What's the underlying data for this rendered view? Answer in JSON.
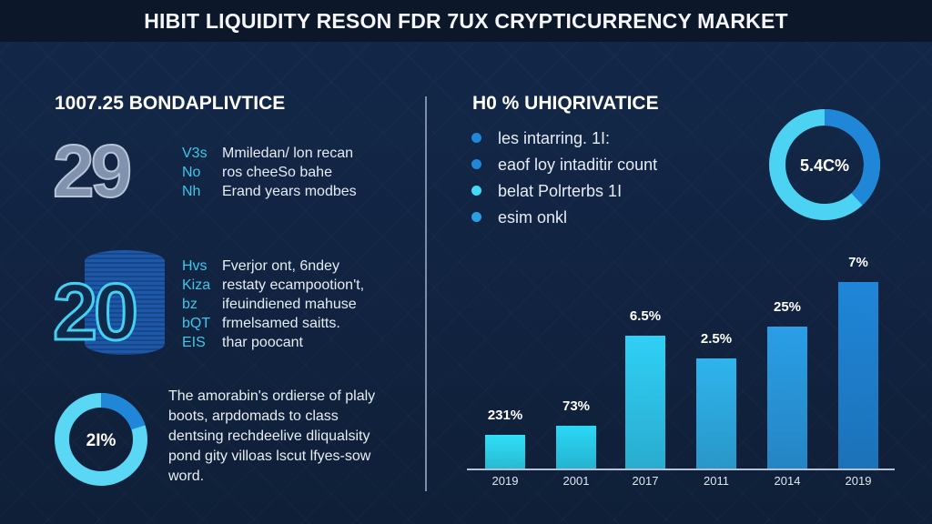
{
  "title": "HIBIT LIQUIDITY RESON FDR 7UX CRYPTICURRENCY MARKET",
  "left": {
    "heading": "1007.25 BONDAPLIVTICE",
    "block1": {
      "number": "29",
      "rows": [
        {
          "key": "V3s",
          "text": "Mmiledan/ lon recan"
        },
        {
          "key": "No",
          "text": "ros cheeSo bahe"
        },
        {
          "key": "Nh",
          "text": "Erand years modbes"
        }
      ]
    },
    "block2": {
      "number": "20",
      "rows": [
        {
          "key": "Hvs",
          "text": "Fverjor ont, 6ndey"
        },
        {
          "key": "Kiza",
          "text": "restaty ecampootion't,"
        },
        {
          "key": "bz",
          "text": "ifeuindiened mahuse"
        },
        {
          "key": "bQT",
          "text": "frmelsamed saitts."
        },
        {
          "key": "EIS",
          "text": "thar poocant"
        }
      ]
    },
    "donut": {
      "label": "2I%",
      "fraction": 0.2,
      "colors": [
        "#1f86d8",
        "#5ad7f5"
      ]
    },
    "paragraph": "The amorabin's ordierse of plaly boots, arpdomads to class dentsing rechdeelive dliqualsity pond gity villoas lscut lfyes-sow word."
  },
  "right": {
    "heading": "H0 % UHIQRIVATICE",
    "legend": [
      {
        "text": "les intarring. 1I:",
        "color": "#1f86d8"
      },
      {
        "text": "eaof loy intaditir count",
        "color": "#1f86d8"
      },
      {
        "text": "belat Polrterbs 1I",
        "color": "#46d8f6"
      },
      {
        "text": "esim onkl",
        "color": "#2b9fe3"
      }
    ],
    "donut": {
      "label": "5.4C%",
      "fraction": 0.38,
      "colors": [
        "#1f86d8",
        "#4cd3f3"
      ]
    }
  },
  "chart_data": {
    "type": "bar",
    "categories": [
      "2019",
      "2001",
      "2017",
      "2011",
      "2014",
      "2019"
    ],
    "data_labels": [
      "231%",
      "73%",
      "6.5%",
      "2.5%",
      "25%",
      "7%"
    ],
    "relative_heights": [
      18,
      23,
      71,
      59,
      76,
      100
    ],
    "colors": [
      "#2ee0f8",
      "#2ad8f6",
      "#30cff5",
      "#2fb4ec",
      "#2a9ee6",
      "#1f86d8"
    ]
  }
}
